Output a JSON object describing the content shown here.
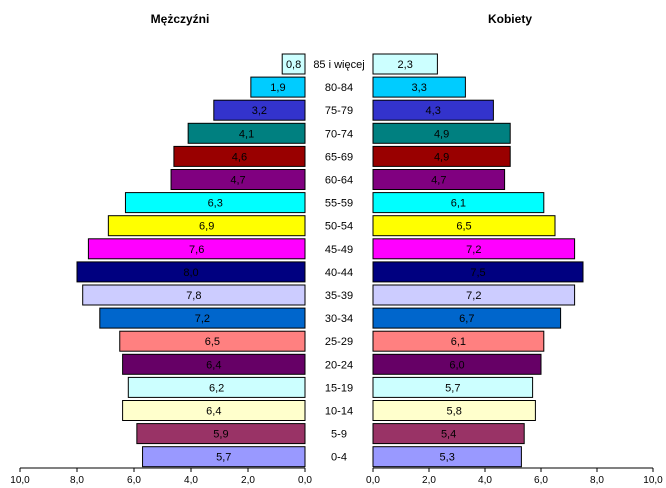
{
  "chart_data": {
    "type": "bar",
    "orientation": "horizontal",
    "categories": [
      "85 i więcej",
      "80-84",
      "75-79",
      "70-74",
      "65-69",
      "60-64",
      "55-59",
      "50-54",
      "45-49",
      "40-44",
      "35-39",
      "30-34",
      "25-29",
      "20-24",
      "15-19",
      "10-14",
      "5-9",
      "0-4"
    ],
    "series": [
      {
        "name": "Mężczyźni",
        "values_display": [
          "0,8",
          "1,9",
          "3,2",
          "4,1",
          "4,6",
          "4,7",
          "6,3",
          "6,9",
          "7,6",
          "8,0",
          "7,8",
          "7,2",
          "6,5",
          "6,4",
          "6,2",
          "6,4",
          "5,9",
          "5,7"
        ],
        "values": [
          0.8,
          1.9,
          3.2,
          4.1,
          4.6,
          4.7,
          6.3,
          6.9,
          7.6,
          8.0,
          7.8,
          7.2,
          6.5,
          6.4,
          6.2,
          6.4,
          5.9,
          5.7
        ]
      },
      {
        "name": "Kobiety",
        "values_display": [
          "2,3",
          "3,3",
          "4,3",
          "4,9",
          "4,9",
          "4,7",
          "6,1",
          "6,5",
          "7,2",
          "7,5",
          "7,2",
          "6,7",
          "6,1",
          "6,0",
          "5,7",
          "5,8",
          "5,4",
          "5,3"
        ],
        "values": [
          2.3,
          3.3,
          4.3,
          4.9,
          4.9,
          4.7,
          6.1,
          6.5,
          7.2,
          7.5,
          7.2,
          6.7,
          6.1,
          6.0,
          5.7,
          5.8,
          5.4,
          5.3
        ]
      }
    ],
    "colors": [
      "#ccffff",
      "#00ccff",
      "#3333cc",
      "#008080",
      "#990000",
      "#800080",
      "#00ffff",
      "#ffff00",
      "#ff00ff",
      "#000080",
      "#ccccff",
      "#0066cc",
      "#ff8080",
      "#660066",
      "#ccffff",
      "#ffffcc",
      "#993366",
      "#9999ff"
    ],
    "label_colors": [
      "#000000",
      "#000000",
      "#ffffff",
      "#ffffff",
      "#ffffff",
      "#ffffff",
      "#000000",
      "#000000",
      "#000000",
      "#ffffff",
      "#000000",
      "#ffffff",
      "#000000",
      "#ffffff",
      "#000000",
      "#000000",
      "#ffffff",
      "#000000"
    ],
    "xlim": [
      0,
      10
    ],
    "left_ticks": [
      "10,0",
      "8,0",
      "6,0",
      "4,0",
      "2,0",
      "0,0"
    ],
    "right_ticks": [
      "0,0",
      "2,0",
      "4,0",
      "6,0",
      "8,0",
      "10,0"
    ],
    "grid": false
  }
}
